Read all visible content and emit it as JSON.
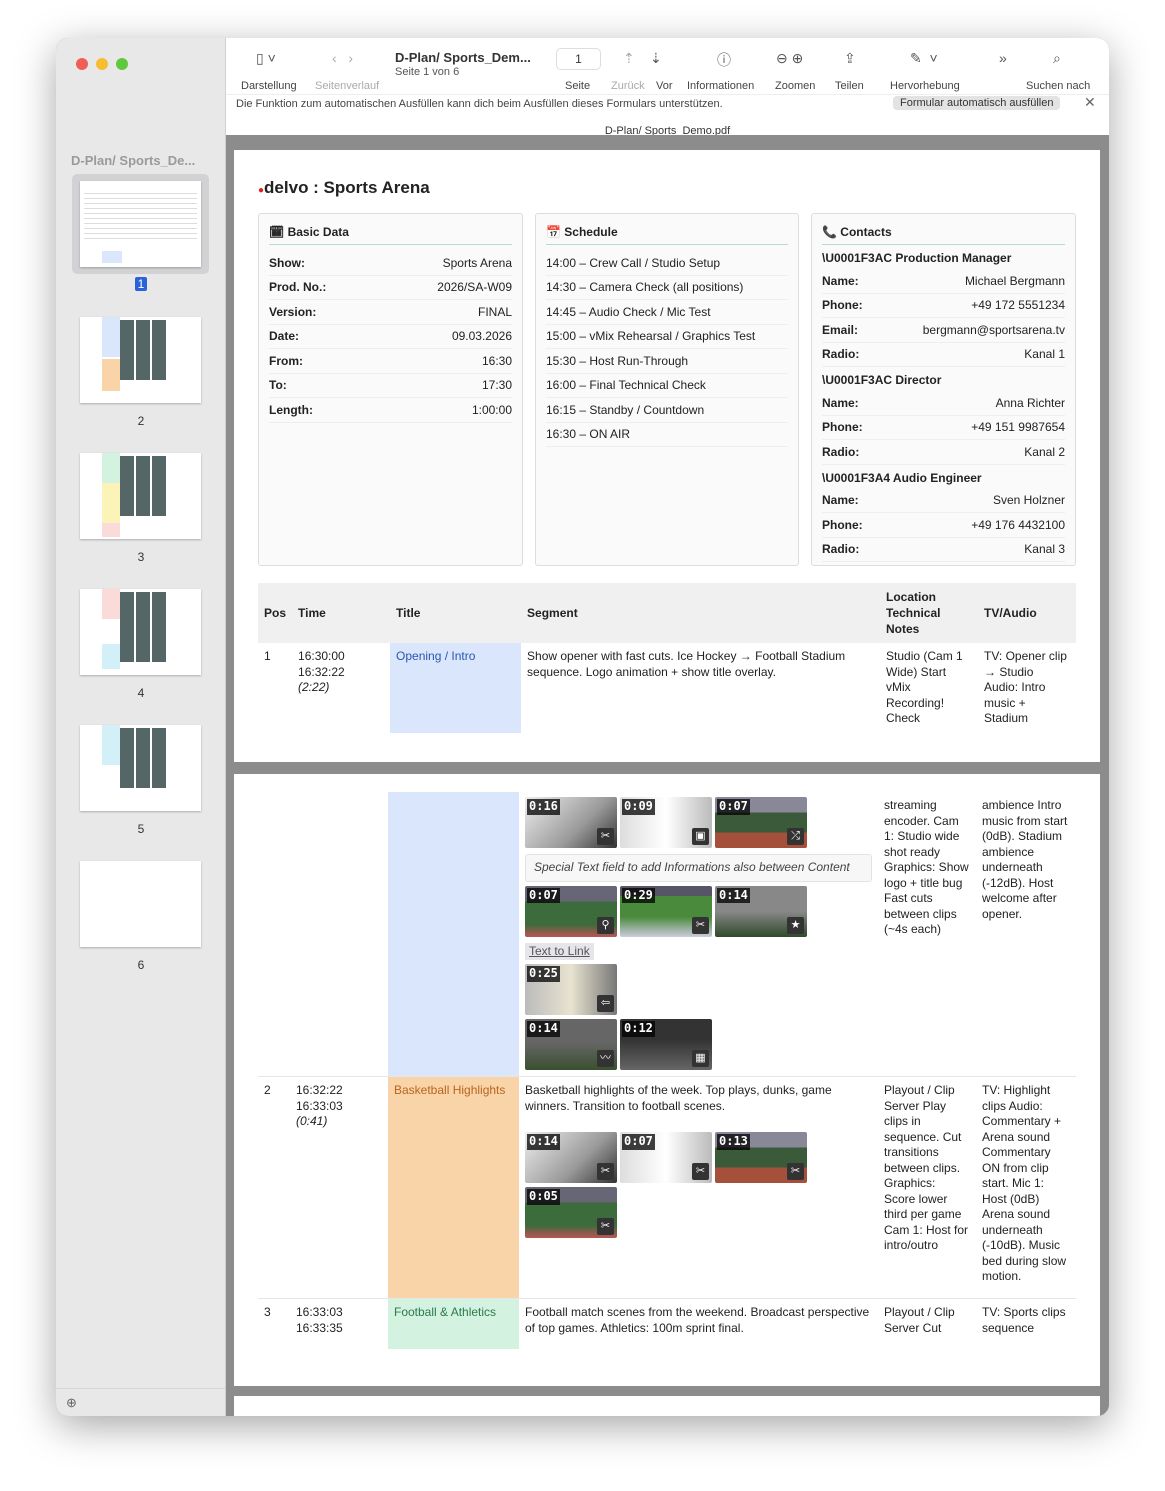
{
  "window": {
    "doc_title": "D-Plan/ Sports_Dem...",
    "page_info": "Seite 1 von 6",
    "page_field": "1",
    "file_name": "D-Plan/ Sports_Demo.pdf"
  },
  "toolbar": {
    "view": "Darstellung",
    "history": "Seitenverlauf",
    "page": "Seite",
    "back": "Zurück",
    "forward": "Vor",
    "info": "Informationen",
    "zoom": "Zoomen",
    "share": "Teilen",
    "highlight": "Hervorhebung",
    "search": "Suchen nach"
  },
  "autofill": {
    "message": "Die Funktion zum automatischen Ausfüllen kann dich beim Ausfüllen dieses Formulars unterstützen.",
    "button": "Formular automatisch ausfüllen"
  },
  "sidebar": {
    "title": "D-Plan/ Sports_De...",
    "pages": [
      "1",
      "2",
      "3",
      "4",
      "5",
      "6"
    ],
    "selected": "1"
  },
  "doc": {
    "title": "delvo : Sports Arena",
    "basic": {
      "heading": "Basic Data",
      "rows": [
        [
          "Show:",
          "Sports Arena"
        ],
        [
          "Prod. No.:",
          "2026/SA-W09"
        ],
        [
          "Version:",
          "FINAL"
        ],
        [
          "Date:",
          "09.03.2026"
        ],
        [
          "From:",
          "16:30"
        ],
        [
          "To:",
          "17:30"
        ],
        [
          "Length:",
          "1:00:00"
        ]
      ]
    },
    "schedule": {
      "heading": "Schedule",
      "items": [
        "14:00 – Crew Call / Studio Setup",
        "14:30 – Camera Check (all positions)",
        "14:45 – Audio Check / Mic Test",
        "15:00 – vMix Rehearsal / Graphics Test",
        "15:30 – Host Run-Through",
        "16:00 – Final Technical Check",
        "16:15 – Standby / Countdown",
        "16:30 – ON AIR"
      ]
    },
    "contacts": {
      "heading": "Contacts",
      "groups": [
        {
          "role": "\\U0001F3AC Production Manager",
          "rows": [
            [
              "Name:",
              "Michael Bergmann"
            ],
            [
              "Phone:",
              "+49 172 5551234"
            ],
            [
              "Email:",
              "bergmann@sportsarena.tv"
            ],
            [
              "Radio:",
              "Kanal 1"
            ]
          ]
        },
        {
          "role": "\\U0001F3AC Director",
          "rows": [
            [
              "Name:",
              "Anna Richter"
            ],
            [
              "Phone:",
              "+49 151 9987654"
            ],
            [
              "Radio:",
              "Kanal 2"
            ]
          ]
        },
        {
          "role": "\\U0001F3A4 Audio Engineer",
          "rows": [
            [
              "Name:",
              "Sven Holzner"
            ],
            [
              "Phone:",
              "+49 176 4432100"
            ],
            [
              "Radio:",
              "Kanal 3"
            ]
          ]
        }
      ]
    },
    "table": {
      "headers": [
        "Pos",
        "Time",
        "Title",
        "Segment",
        "Location Technical Notes",
        "TV/Audio"
      ],
      "rows": [
        {
          "pos": "1",
          "start": "16:30:00",
          "end": "16:32:22",
          "dur": "(2:22)",
          "title": "Opening / Intro",
          "color": "#dae6fb",
          "text_color": "#2a56b0",
          "segment": "Show opener with fast cuts. Ice Hockey → Football Stadium sequence. Logo animation + show title overlay.",
          "location_p1": "Studio (Cam 1 Wide) Start vMix Recording! Check",
          "location_p2": "streaming encoder. Cam 1: Studio wide shot ready Graphics: Show logo + title bug Fast cuts between clips (~4s each)",
          "tv_p1": "TV: Opener clip → Studio Audio: Intro music + Stadium",
          "tv_p2": "ambience Intro music from start (0dB). Stadium ambience underneath (-12dB). Host welcome after opener.",
          "clip_rows": [
            [
              "0:16",
              "0:09",
              "0:07"
            ],
            [
              "0:07",
              "0:29",
              "0:14"
            ],
            [
              "0:25"
            ],
            [
              "0:14",
              "0:12"
            ]
          ],
          "note": "Special Text field to add Informations also between Content",
          "link": "Text to Link"
        },
        {
          "pos": "2",
          "start": "16:32:22",
          "end": "16:33:03",
          "dur": "(0:41)",
          "title": "Basketball Highlights",
          "color": "#f8d4a8",
          "text_color": "#b8661c",
          "segment": "Basketball highlights of the week. Top plays, dunks, game winners. Transition to football scenes.",
          "location": "Playout / Clip Server Play clips in sequence. Cut transitions between clips. Graphics: Score lower third per game Cam 1: Host for intro/outro",
          "tv": "TV: Highlight clips Audio: Commentary + Arena sound Commentary ON from clip start. Mic 1: Host (0dB) Arena sound underneath (-10dB). Music bed during slow motion.",
          "clip_rows": [
            [
              "0:14",
              "0:07",
              "0:13"
            ],
            [
              "0:05"
            ]
          ]
        },
        {
          "pos": "3",
          "start": "16:33:03",
          "end": "16:33:35",
          "title": "Football & Athletics",
          "color": "#d3f2df",
          "text_color": "#2c7a4a",
          "segment": "Football match scenes from the weekend. Broadcast perspective of top games. Athletics: 100m sprint final.",
          "location": "Playout / Clip Server Cut",
          "tv": "TV: Sports clips sequence"
        }
      ]
    }
  }
}
